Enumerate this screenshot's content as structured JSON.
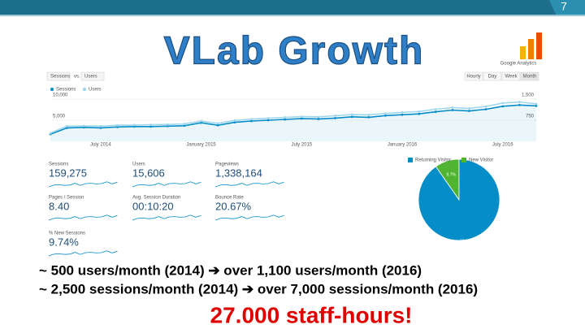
{
  "slide_number": "7",
  "title": "VLab Growth",
  "logo": "Google Analytics",
  "analytics": {
    "selectors": [
      "Sessions",
      "vs.",
      "Users"
    ],
    "period_buttons": [
      "Hourly",
      "Day",
      "Week",
      "Month"
    ],
    "metrics": [
      {
        "label": "Sessions",
        "value": "159,275"
      },
      {
        "label": "Users",
        "value": "15,606"
      },
      {
        "label": "Pageviews",
        "value": "1,338,164"
      },
      {
        "label": "Pages / Session",
        "value": "8.40"
      },
      {
        "label": "Avg. Session Duration",
        "value": "00:10:20"
      },
      {
        "label": "Bounce Rate",
        "value": "20.67%"
      },
      {
        "label": "% New Sessions",
        "value": "9.74%"
      }
    ]
  },
  "chart_data": [
    {
      "type": "line",
      "categories": [
        null,
        null,
        null,
        "July 2014",
        null,
        null,
        null,
        null,
        null,
        "January 2015",
        null,
        null,
        null,
        null,
        null,
        "July 2015",
        null,
        null,
        null,
        null,
        null,
        "January 2016",
        null,
        null,
        null,
        null,
        null,
        "July 2016",
        null,
        null
      ],
      "series": [
        {
          "name": "Sessions",
          "color": "#058dc7",
          "values": [
            1700,
            3200,
            3300,
            3200,
            3400,
            3500,
            3500,
            3600,
            3700,
            4400,
            3800,
            4500,
            4800,
            5000,
            5200,
            5400,
            5300,
            5500,
            5800,
            5700,
            6100,
            6300,
            6500,
            7000,
            7400,
            7200,
            7600,
            8300,
            8600,
            8400
          ]
        },
        {
          "name": "Users",
          "color": "#9fd6ec",
          "axis": "y2",
          "values": [
            290,
            540,
            550,
            540,
            570,
            580,
            590,
            600,
            620,
            720,
            640,
            740,
            790,
            820,
            850,
            880,
            870,
            910,
            950,
            940,
            990,
            1030,
            1060,
            1140,
            1200,
            1170,
            1240,
            1360,
            1400,
            1330
          ]
        }
      ],
      "ylim": [
        0,
        10000
      ],
      "yticks": [
        {
          "value": 10000,
          "label": "10,000"
        },
        {
          "value": 5000,
          "label": "5,000"
        }
      ],
      "y2lim": [
        0,
        1500
      ],
      "y2ticks": [
        {
          "value": 1500,
          "label": "1,500"
        },
        {
          "value": 750,
          "label": "750"
        }
      ],
      "grid": true,
      "legend": "top-left"
    },
    {
      "type": "pie",
      "categories": [
        "New Visitor",
        "Returning Visitor"
      ],
      "colors": [
        "#50b432",
        "#058dc7"
      ],
      "values": [
        9.7,
        90.3
      ],
      "value_labels": [
        "9.7%",
        "90.3%"
      ],
      "legend_order": [
        1,
        0
      ]
    }
  ],
  "bullets": [
    "~ 500 users/month (2014) ➔ over 1,100 users/month (2016)",
    "~ 2,500 sessions/month (2014) ➔ over 7,000 sessions/month (2016)"
  ],
  "highlight": "27.000 staff-hours!"
}
